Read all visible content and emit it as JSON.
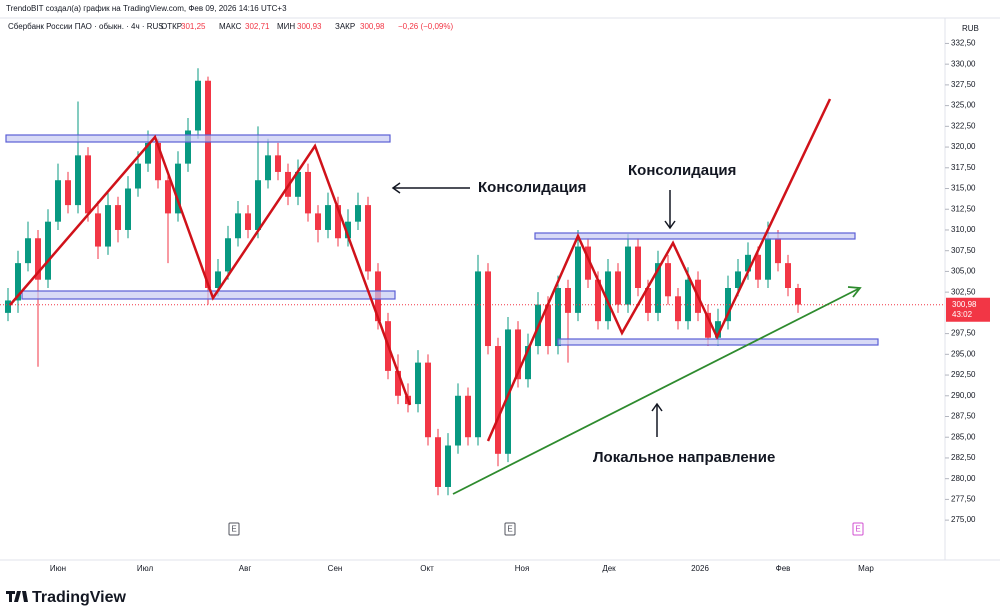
{
  "header": {
    "credit": "TrendoBIT создал(а) график на TradingView.com, Фев 09, 2026 14:16 UTC+3",
    "symbol": "Сбербанк России ПАО · обыкн. · 4ч · RUS",
    "ohlc": [
      {
        "label": "ОТКР",
        "value": "301,25"
      },
      {
        "label": "МАКС",
        "value": "302,71"
      },
      {
        "label": "МИН",
        "value": "300,93"
      },
      {
        "label": "ЗАКР",
        "value": "300,98"
      }
    ],
    "change": "−0,26 (−0,09%)"
  },
  "chart_data": {
    "type": "candlestick",
    "currency": "RUB",
    "up_color": "#089981",
    "down_color": "#f23645",
    "candles": [
      [
        300,
        303,
        299,
        301.5
      ],
      [
        301.5,
        307.5,
        300,
        306
      ],
      [
        306,
        311,
        305,
        309
      ],
      [
        309,
        310,
        293.5,
        304
      ],
      [
        304,
        312.5,
        303,
        311
      ],
      [
        311,
        318,
        310,
        316
      ],
      [
        316,
        317,
        312,
        313
      ],
      [
        313,
        325.5,
        312,
        319
      ],
      [
        319,
        320,
        311,
        312
      ],
      [
        312,
        313.5,
        306.5,
        308
      ],
      [
        308,
        314.5,
        307,
        313
      ],
      [
        313,
        314,
        308.5,
        310
      ],
      [
        310,
        316.5,
        309,
        315
      ],
      [
        315,
        319.5,
        314,
        318
      ],
      [
        318,
        322,
        317,
        320.5
      ],
      [
        320.5,
        321,
        315,
        316
      ],
      [
        316,
        317,
        306,
        312
      ],
      [
        312,
        319.5,
        311,
        318
      ],
      [
        318,
        323.5,
        317,
        322
      ],
      [
        322,
        329.5,
        321,
        328
      ],
      [
        328,
        328.5,
        301,
        303
      ],
      [
        303,
        306.5,
        302,
        305
      ],
      [
        305,
        310.5,
        304,
        309
      ],
      [
        309,
        313.5,
        308,
        312
      ],
      [
        312,
        313,
        309,
        310
      ],
      [
        310,
        322.5,
        309,
        316
      ],
      [
        316,
        321,
        315,
        319
      ],
      [
        319,
        320.5,
        316,
        317
      ],
      [
        317,
        318,
        313,
        314
      ],
      [
        314,
        318.5,
        313,
        317
      ],
      [
        317,
        318,
        311,
        312
      ],
      [
        312,
        313,
        308.5,
        310
      ],
      [
        310,
        314.5,
        309,
        313
      ],
      [
        313,
        314,
        308,
        309
      ],
      [
        309,
        312.5,
        308,
        311
      ],
      [
        311,
        314.5,
        310,
        313
      ],
      [
        313,
        314,
        304,
        305
      ],
      [
        305,
        306,
        298,
        299
      ],
      [
        299,
        300,
        292,
        293
      ],
      [
        293,
        295,
        289,
        290
      ],
      [
        290,
        291.5,
        288,
        289
      ],
      [
        289,
        295.5,
        288,
        294
      ],
      [
        294,
        295,
        284,
        285
      ],
      [
        285,
        286,
        278,
        279
      ],
      [
        279,
        285.5,
        278,
        284
      ],
      [
        284,
        291.5,
        283,
        290
      ],
      [
        290,
        291,
        284,
        285
      ],
      [
        285,
        307,
        284,
        305
      ],
      [
        305,
        306,
        295,
        296
      ],
      [
        296,
        297,
        281.5,
        283
      ],
      [
        283,
        299.5,
        282,
        298
      ],
      [
        298,
        299,
        291,
        292
      ],
      [
        292,
        297.5,
        291,
        296
      ],
      [
        296,
        302.5,
        295,
        301
      ],
      [
        301,
        302,
        295,
        296
      ],
      [
        296,
        304.5,
        295,
        303
      ],
      [
        303,
        304,
        294,
        300
      ],
      [
        300,
        310,
        299,
        308
      ],
      [
        308,
        309,
        303,
        304
      ],
      [
        304,
        305,
        298,
        299
      ],
      [
        299,
        306.5,
        298,
        305
      ],
      [
        305,
        306,
        300,
        301
      ],
      [
        301,
        309.5,
        300,
        308
      ],
      [
        308,
        309,
        302,
        303
      ],
      [
        303,
        304,
        299,
        300
      ],
      [
        300,
        307.5,
        299,
        306
      ],
      [
        306,
        307,
        301,
        302
      ],
      [
        302,
        303,
        298,
        299
      ],
      [
        299,
        305.5,
        298,
        304
      ],
      [
        304,
        305,
        299,
        300
      ],
      [
        300,
        301,
        296,
        297
      ],
      [
        297,
        300.5,
        296,
        299
      ],
      [
        299,
        304.5,
        298,
        303
      ],
      [
        303,
        306.5,
        302,
        305
      ],
      [
        305,
        308.5,
        304,
        307
      ],
      [
        307,
        308,
        303,
        304
      ],
      [
        304,
        311,
        303,
        309
      ],
      [
        309,
        310,
        305,
        306
      ],
      [
        306,
        307,
        302,
        303
      ],
      [
        303,
        303.5,
        300,
        301
      ]
    ],
    "ylim": [
      272,
      334
    ],
    "yticks": [
      {
        "value": 275,
        "label": "275,00"
      },
      {
        "value": 277.5,
        "label": "277,50"
      },
      {
        "value": 280,
        "label": "280,00"
      },
      {
        "value": 282.5,
        "label": "282,50"
      },
      {
        "value": 285,
        "label": "285,00"
      },
      {
        "value": 287.5,
        "label": "287,50"
      },
      {
        "value": 290,
        "label": "290,00"
      },
      {
        "value": 292.5,
        "label": "292,50"
      },
      {
        "value": 295,
        "label": "295,00"
      },
      {
        "value": 297.5,
        "label": "297,50"
      },
      {
        "value": 302.5,
        "label": "302,50"
      },
      {
        "value": 305,
        "label": "305,00"
      },
      {
        "value": 307.5,
        "label": "307,50"
      },
      {
        "value": 310,
        "label": "310,00"
      },
      {
        "value": 312.5,
        "label": "312,50"
      },
      {
        "value": 315,
        "label": "315,00"
      },
      {
        "value": 317.5,
        "label": "317,50"
      },
      {
        "value": 320,
        "label": "320,00"
      },
      {
        "value": 322.5,
        "label": "322,50"
      },
      {
        "value": 325,
        "label": "325,00"
      },
      {
        "value": 327.5,
        "label": "327,50"
      },
      {
        "value": 330,
        "label": "330,00"
      },
      {
        "value": 332.5,
        "label": "332,50"
      }
    ],
    "last_price": {
      "value": 300.98,
      "label": "300,98"
    },
    "countdown": "43:02",
    "x_labels": [
      "Июн",
      "Июл",
      "Авг",
      "Сен",
      "Окт",
      "Ноя",
      "Дек",
      "2026",
      "Фев",
      "Мар"
    ],
    "events": [
      "E",
      "E",
      "E"
    ],
    "annotations": [
      "Консолидация",
      "Консолидация",
      "Локальное направление"
    ]
  },
  "footer": {
    "brand": "TradingView"
  }
}
